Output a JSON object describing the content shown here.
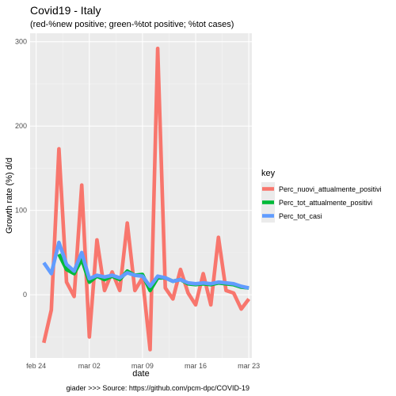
{
  "chart_data": {
    "type": "line",
    "title": "Covid19 - Italy",
    "subtitle": "(red-%new positive; green-%tot positive; %tot cases)",
    "xlabel": "date",
    "ylabel": "Growth rate (%) d/d",
    "caption": "giader >>>  Source: https://github.com/pcm-dpc/COVID-19",
    "x": [
      "feb 25",
      "feb 26",
      "feb 27",
      "feb 28",
      "feb 29",
      "mar 01",
      "mar 02",
      "mar 03",
      "mar 04",
      "mar 05",
      "mar 06",
      "mar 07",
      "mar 08",
      "mar 09",
      "mar 10",
      "mar 11",
      "mar 12",
      "mar 13",
      "mar 14",
      "mar 15",
      "mar 16",
      "mar 17",
      "mar 18",
      "mar 19",
      "mar 20",
      "mar 21",
      "mar 22",
      "mar 23"
    ],
    "x_ticks": [
      "feb 24",
      "mar 02",
      "mar 09",
      "mar 16",
      "mar 23"
    ],
    "y_ticks": [
      0,
      100,
      200,
      300
    ],
    "ylim": [
      -75,
      310
    ],
    "grid": true,
    "legend": {
      "title": "key",
      "position": "right"
    },
    "series": [
      {
        "name": "Perc_nuovi_attualmente_positivi",
        "color": "#F8766D",
        "values": [
          -57,
          -18,
          173,
          15,
          -2,
          130,
          -50,
          65,
          5,
          27,
          5,
          85,
          5,
          20,
          -65,
          292,
          8,
          -5,
          30,
          2,
          -12,
          25,
          -12,
          68,
          5,
          2,
          -17,
          -5
        ]
      },
      {
        "name": "Perc_tot_attualmente_positivi",
        "color": "#00BA38",
        "values": [
          null,
          null,
          48,
          30,
          25,
          42,
          15,
          22,
          18,
          22,
          18,
          28,
          23,
          24,
          5,
          20,
          20,
          16,
          18,
          13,
          12,
          13,
          12,
          14,
          13,
          12,
          9,
          8
        ]
      },
      {
        "name": "Perc_tot_casi",
        "color": "#619CFF",
        "values": [
          38,
          25,
          62,
          36,
          28,
          50,
          19,
          23,
          21,
          23,
          20,
          26,
          23,
          22,
          10,
          22,
          20,
          16,
          18,
          14,
          13,
          14,
          13,
          15,
          14,
          13,
          10,
          8
        ]
      }
    ]
  }
}
